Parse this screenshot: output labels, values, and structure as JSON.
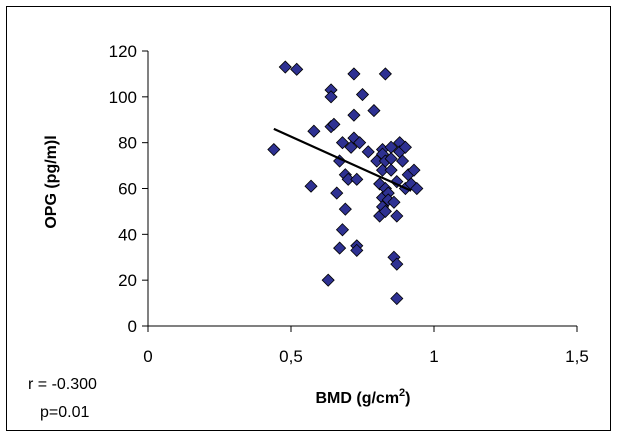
{
  "chart_data": {
    "type": "scatter",
    "title": "",
    "xlabel": "BMD (g/cm",
    "xlabel_sup": "2",
    "xlabel_suffix": ")",
    "ylabel": "OPG (pg/m)l",
    "xlim": [
      0,
      1.5
    ],
    "ylim": [
      0,
      120
    ],
    "xticks": [
      0,
      0.5,
      1,
      1.5
    ],
    "xtick_labels": [
      "0",
      "0,5",
      "1",
      "1,5"
    ],
    "yticks": [
      0,
      20,
      40,
      60,
      80,
      100,
      120
    ],
    "ytick_labels": [
      "0",
      "20",
      "40",
      "60",
      "80",
      "100",
      "120"
    ],
    "grid": false,
    "legend": "none",
    "marker": "diamond",
    "marker_color": "#2e3192",
    "trendline": {
      "x": [
        0.44,
        0.92
      ],
      "y": [
        86,
        59
      ],
      "color": "#000000"
    },
    "annotations": [
      "r = -0.300",
      "p=0.01"
    ],
    "points": [
      [
        0.44,
        77
      ],
      [
        0.48,
        113
      ],
      [
        0.52,
        112
      ],
      [
        0.57,
        61
      ],
      [
        0.58,
        85
      ],
      [
        0.63,
        20
      ],
      [
        0.64,
        103
      ],
      [
        0.64,
        100
      ],
      [
        0.64,
        87
      ],
      [
        0.65,
        88
      ],
      [
        0.66,
        58
      ],
      [
        0.67,
        34
      ],
      [
        0.67,
        72
      ],
      [
        0.68,
        42
      ],
      [
        0.68,
        80
      ],
      [
        0.69,
        66
      ],
      [
        0.69,
        51
      ],
      [
        0.7,
        64
      ],
      [
        0.71,
        78
      ],
      [
        0.72,
        92
      ],
      [
        0.72,
        110
      ],
      [
        0.72,
        82
      ],
      [
        0.73,
        35
      ],
      [
        0.73,
        33
      ],
      [
        0.73,
        64
      ],
      [
        0.74,
        80
      ],
      [
        0.75,
        101
      ],
      [
        0.77,
        76
      ],
      [
        0.79,
        94
      ],
      [
        0.8,
        72
      ],
      [
        0.81,
        48
      ],
      [
        0.81,
        62
      ],
      [
        0.82,
        77
      ],
      [
        0.82,
        75
      ],
      [
        0.82,
        68
      ],
      [
        0.82,
        56
      ],
      [
        0.82,
        52
      ],
      [
        0.83,
        110
      ],
      [
        0.83,
        72
      ],
      [
        0.83,
        60
      ],
      [
        0.83,
        50
      ],
      [
        0.84,
        58
      ],
      [
        0.84,
        55
      ],
      [
        0.85,
        78
      ],
      [
        0.85,
        73
      ],
      [
        0.85,
        68
      ],
      [
        0.86,
        30
      ],
      [
        0.86,
        54
      ],
      [
        0.87,
        27
      ],
      [
        0.87,
        12
      ],
      [
        0.87,
        48
      ],
      [
        0.87,
        63
      ],
      [
        0.88,
        80
      ],
      [
        0.88,
        76
      ],
      [
        0.89,
        72
      ],
      [
        0.9,
        78
      ],
      [
        0.9,
        60
      ],
      [
        0.91,
        66
      ],
      [
        0.92,
        62
      ],
      [
        0.93,
        68
      ],
      [
        0.94,
        60
      ]
    ]
  }
}
